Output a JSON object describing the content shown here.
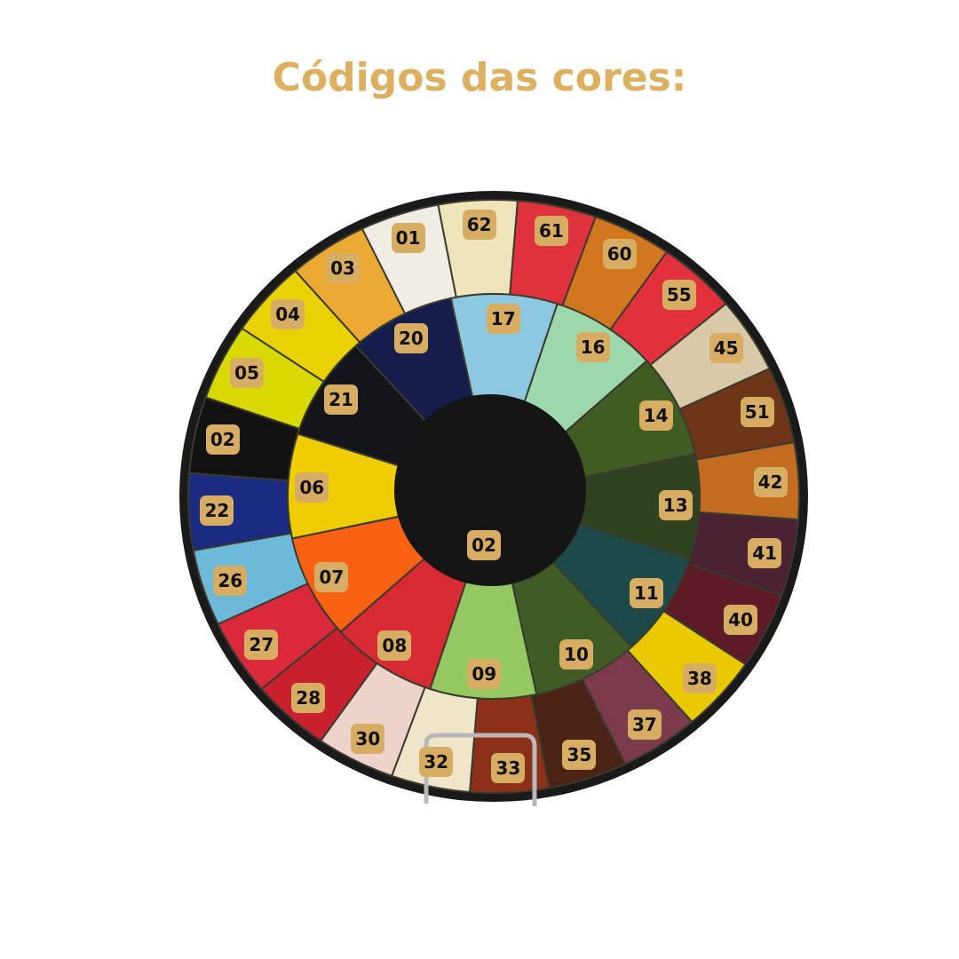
{
  "title": "Códigos das cores:",
  "plate": {
    "center": {
      "code": "02",
      "color": "#151515"
    },
    "inner": [
      {
        "code": "17",
        "color": "#8cc8df"
      },
      {
        "code": "16",
        "color": "#9cd8aa"
      },
      {
        "code": "14",
        "color": "#405c22"
      },
      {
        "code": "13",
        "color": "#2f4220"
      },
      {
        "code": "11",
        "color": "#1d4a48"
      },
      {
        "code": "10",
        "color": "#3f5c24"
      },
      {
        "code": "09",
        "color": "#94c962"
      },
      {
        "code": "08",
        "color": "#d82a32"
      },
      {
        "code": "07",
        "color": "#f86212"
      },
      {
        "code": "06",
        "color": "#f0cc04"
      },
      {
        "code": "21",
        "color": "#131519"
      },
      {
        "code": "20",
        "color": "#151d4a"
      }
    ],
    "outer": [
      {
        "code": "62",
        "color": "#f0e4ba"
      },
      {
        "code": "61",
        "color": "#e0323c"
      },
      {
        "code": "60",
        "color": "#d2761f"
      },
      {
        "code": "55",
        "color": "#e2313c"
      },
      {
        "code": "45",
        "color": "#d9c9a9"
      },
      {
        "code": "51",
        "color": "#6f3519"
      },
      {
        "code": "42",
        "color": "#c36b20"
      },
      {
        "code": "41",
        "color": "#4a2231"
      },
      {
        "code": "40",
        "color": "#5c1b26"
      },
      {
        "code": "38",
        "color": "#e9c902"
      },
      {
        "code": "37",
        "color": "#7b3b4a"
      },
      {
        "code": "35",
        "color": "#4b2315"
      },
      {
        "code": "33",
        "color": "#8b3119"
      },
      {
        "code": "32",
        "color": "#efe6c9"
      },
      {
        "code": "30",
        "color": "#edd3c9"
      },
      {
        "code": "28",
        "color": "#c8212d"
      },
      {
        "code": "27",
        "color": "#d9293b"
      },
      {
        "code": "26",
        "color": "#6cb9d9"
      },
      {
        "code": "22",
        "color": "#1b2b82"
      },
      {
        "code": "02",
        "color": "#121212"
      },
      {
        "code": "05",
        "color": "#d9d902"
      },
      {
        "code": "04",
        "color": "#e9d103"
      },
      {
        "code": "03",
        "color": "#e9a932"
      },
      {
        "code": "01",
        "color": "#f1ede5"
      }
    ],
    "rim_color": "#1a1a1a",
    "label_color": "#d6ad62",
    "title_color": "#dcb060"
  }
}
